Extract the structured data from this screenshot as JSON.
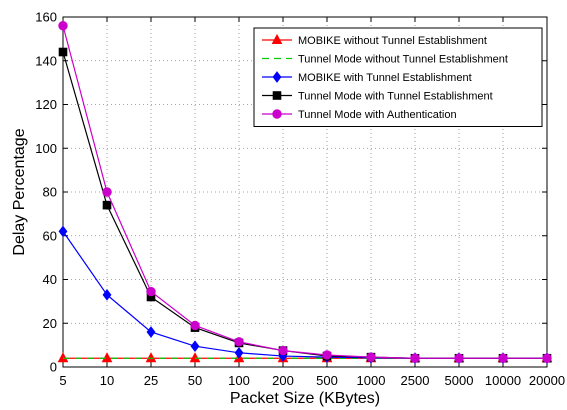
{
  "chart_data": {
    "type": "line",
    "title": "",
    "xlabel": "Packet Size (KBytes)",
    "ylabel": "Delay Percentage",
    "categories": [
      "5",
      "10",
      "25",
      "50",
      "100",
      "200",
      "500",
      "1000",
      "2500",
      "5000",
      "10000",
      "20000"
    ],
    "ylim": [
      0,
      160
    ],
    "yticks": [
      0,
      20,
      40,
      60,
      80,
      100,
      120,
      140,
      160
    ],
    "grid": true,
    "legend_position": "top-right",
    "series": [
      {
        "name": "MOBIKE without Tunnel Establishment",
        "color": "#ff0000",
        "marker": "triangle",
        "line_style": "solid",
        "values": [
          4,
          4,
          4,
          4,
          4,
          4,
          4,
          4,
          4,
          4,
          4,
          4
        ]
      },
      {
        "name": "Tunnel Mode without Tunnel Establishment",
        "color": "#00cc00",
        "marker": "none",
        "line_style": "dashed",
        "values": [
          4,
          4,
          4,
          4,
          4,
          4,
          4,
          4,
          4,
          4,
          4,
          4
        ]
      },
      {
        "name": "MOBIKE with Tunnel Establishment",
        "color": "#0000ff",
        "marker": "diamond",
        "line_style": "solid",
        "values": [
          62,
          33,
          16,
          9.5,
          6.5,
          5,
          4.5,
          4.2,
          4,
          4,
          4,
          4
        ]
      },
      {
        "name": "Tunnel Mode with Tunnel Establishment",
        "color": "#000000",
        "marker": "square",
        "line_style": "solid",
        "values": [
          144,
          74,
          32,
          18,
          11,
          7.5,
          5,
          4.5,
          4,
          4,
          4,
          4
        ]
      },
      {
        "name": "Tunnel Mode with Authentication",
        "color": "#cc00cc",
        "marker": "circle",
        "line_style": "solid",
        "values": [
          156,
          80,
          34.5,
          19,
          11.5,
          7.5,
          5.5,
          4.5,
          4,
          4,
          4,
          4
        ]
      }
    ]
  }
}
